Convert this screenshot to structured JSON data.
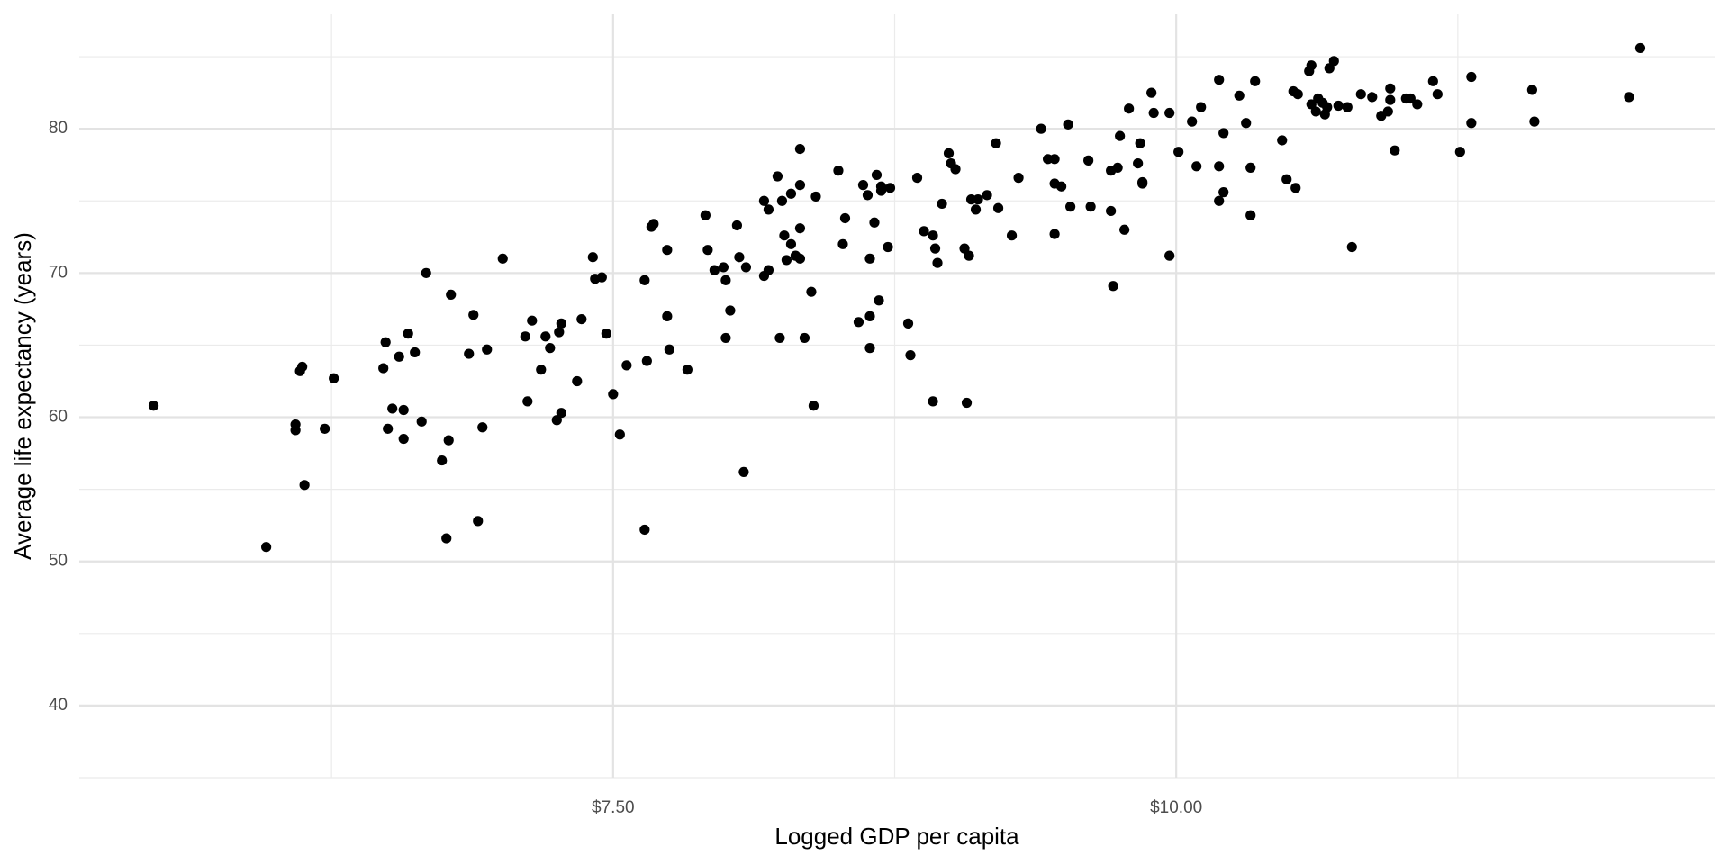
{
  "chart_data": {
    "type": "scatter",
    "x_label": "Logged GDP per capita",
    "y_label": "Average life expectancy (years)",
    "color": "#000000",
    "grid": true,
    "xlim": [
      5.13,
      12.39
    ],
    "ylim": [
      35,
      88
    ],
    "xticks": [
      {
        "value": 7.5,
        "label": "$7.50"
      },
      {
        "value": 10,
        "label": "$10.00"
      }
    ],
    "yticks": [
      40,
      50,
      60,
      70,
      80
    ],
    "minor_xticks": [
      6.25,
      8.75,
      11.25
    ],
    "minor_yticks": [
      35,
      45,
      55,
      65,
      75,
      85
    ],
    "x": [
      5.46,
      5.96,
      6.09,
      6.09,
      6.11,
      6.12,
      6.13,
      6.22,
      6.26,
      6.48,
      6.49,
      6.5,
      6.52,
      6.55,
      6.57,
      6.57,
      6.59,
      6.62,
      6.65,
      6.67,
      6.74,
      6.76,
      6.77,
      6.78,
      6.86,
      6.88,
      6.9,
      6.92,
      6.94,
      7.01,
      7.11,
      7.12,
      7.14,
      7.18,
      7.2,
      7.22,
      7.25,
      7.26,
      7.27,
      7.27,
      7.34,
      7.36,
      7.41,
      7.42,
      7.45,
      7.47,
      7.5,
      7.53,
      7.56,
      7.64,
      7.64,
      7.65,
      7.67,
      7.68,
      7.74,
      7.74,
      7.75,
      7.83,
      7.91,
      7.92,
      7.95,
      7.99,
      8.0,
      8.0,
      8.02,
      8.05,
      8.06,
      8.08,
      8.09,
      8.17,
      8.17,
      8.19,
      8.19,
      8.23,
      8.24,
      8.25,
      8.26,
      8.27,
      8.29,
      8.29,
      8.31,
      8.33,
      8.33,
      8.33,
      8.33,
      8.35,
      8.38,
      8.39,
      8.4,
      8.5,
      8.52,
      8.53,
      8.59,
      8.61,
      8.63,
      8.64,
      8.64,
      8.64,
      8.66,
      8.67,
      8.68,
      8.69,
      8.69,
      8.72,
      8.73,
      8.81,
      8.82,
      8.85,
      8.88,
      8.92,
      8.92,
      8.93,
      8.94,
      8.96,
      8.99,
      9.0,
      9.02,
      9.06,
      9.07,
      9.08,
      9.09,
      9.11,
      9.12,
      9.16,
      9.2,
      9.21,
      9.27,
      9.3,
      9.4,
      9.43,
      9.46,
      9.46,
      9.46,
      9.49,
      9.52,
      9.53,
      9.61,
      9.62,
      9.71,
      9.71,
      9.72,
      9.74,
      9.75,
      9.77,
      9.79,
      9.83,
      9.84,
      9.85,
      9.85,
      9.89,
      9.9,
      9.97,
      9.97,
      10.01,
      10.07,
      10.09,
      10.11,
      10.19,
      10.19,
      10.19,
      10.21,
      10.21,
      10.28,
      10.31,
      10.33,
      10.33,
      10.35,
      10.47,
      10.49,
      10.52,
      10.53,
      10.54,
      10.59,
      10.6,
      10.6,
      10.62,
      10.63,
      10.65,
      10.66,
      10.67,
      10.68,
      10.7,
      10.72,
      10.76,
      10.78,
      10.82,
      10.87,
      10.91,
      10.94,
      10.95,
      10.95,
      10.97,
      11.02,
      11.04,
      11.07,
      11.14,
      11.16,
      11.26,
      11.31,
      11.31,
      11.58,
      11.59,
      12.01,
      12.06
    ],
    "values": [
      60.8,
      51.0,
      59.5,
      59.1,
      63.2,
      63.5,
      55.3,
      59.2,
      62.7,
      63.4,
      65.2,
      59.2,
      60.6,
      64.2,
      60.5,
      58.5,
      65.8,
      64.5,
      59.7,
      70.0,
      57.0,
      51.6,
      58.4,
      68.5,
      64.4,
      67.1,
      52.8,
      59.3,
      64.7,
      71.0,
      65.6,
      61.1,
      66.7,
      63.3,
      65.6,
      64.8,
      59.8,
      65.9,
      66.5,
      60.3,
      62.5,
      66.8,
      71.1,
      69.6,
      69.7,
      65.8,
      61.6,
      58.8,
      63.6,
      52.2,
      69.5,
      63.9,
      73.2,
      73.4,
      71.6,
      67.0,
      64.7,
      63.3,
      74.0,
      71.6,
      70.2,
      70.4,
      69.5,
      65.5,
      67.4,
      73.3,
      71.1,
      56.2,
      70.4,
      75.0,
      69.8,
      74.4,
      70.2,
      76.7,
      65.5,
      75.0,
      72.6,
      70.9,
      75.5,
      72.0,
      71.2,
      78.6,
      73.1,
      71.0,
      76.1,
      65.5,
      68.7,
      60.8,
      75.3,
      77.1,
      72.0,
      73.8,
      66.6,
      76.1,
      75.4,
      71.0,
      64.8,
      67.0,
      73.5,
      76.8,
      68.1,
      76.0,
      75.7,
      71.8,
      75.9,
      66.5,
      64.3,
      76.6,
      72.9,
      61.1,
      72.6,
      71.7,
      70.7,
      74.8,
      78.3,
      77.6,
      77.2,
      71.7,
      61.0,
      71.2,
      75.1,
      74.4,
      75.1,
      75.4,
      79.0,
      74.5,
      72.6,
      76.6,
      80.0,
      77.9,
      76.2,
      77.9,
      72.7,
      76.0,
      80.3,
      74.6,
      77.8,
      74.6,
      77.1,
      74.3,
      69.1,
      77.3,
      79.5,
      73.0,
      81.4,
      77.6,
      79.0,
      76.3,
      76.2,
      82.5,
      81.1,
      71.2,
      81.1,
      78.4,
      80.5,
      77.4,
      81.5,
      75.0,
      83.4,
      77.4,
      79.7,
      75.6,
      82.3,
      80.4,
      74.0,
      77.3,
      83.3,
      79.2,
      76.5,
      82.6,
      75.9,
      82.4,
      84.0,
      84.4,
      81.7,
      81.2,
      82.1,
      81.8,
      81.0,
      81.5,
      84.2,
      84.7,
      81.6,
      81.5,
      71.8,
      82.4,
      82.2,
      80.9,
      81.2,
      82.8,
      82.0,
      78.5,
      82.1,
      82.1,
      81.7,
      83.3,
      82.4,
      78.4,
      83.6,
      80.4,
      82.7,
      80.5,
      82.2,
      85.6
    ]
  }
}
